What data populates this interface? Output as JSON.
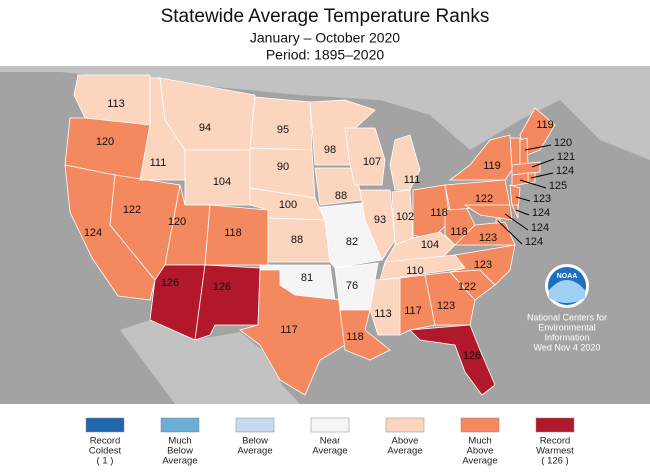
{
  "map": {
    "title": "Statewide Average Temperature Ranks",
    "subtitle": "January – October 2020",
    "period": "Period: 1895–2020",
    "logo": "NOAA",
    "credit": [
      "National Centers for",
      "Environmental",
      "Information",
      "Wed Nov  4 2020"
    ],
    "legend": [
      {
        "lines": [
          "Record",
          "Coldest",
          "( 1 )"
        ],
        "color": "#2166ac"
      },
      {
        "lines": [
          "Much",
          "Below",
          "Average"
        ],
        "color": "#6baed6"
      },
      {
        "lines": [
          "Below",
          "Average"
        ],
        "color": "#c6dbef"
      },
      {
        "lines": [
          "Near",
          "Average"
        ],
        "color": "#f5f5f5"
      },
      {
        "lines": [
          "Above",
          "Average"
        ],
        "color": "#fcd5bf"
      },
      {
        "lines": [
          "Much",
          "Above",
          "Average"
        ],
        "color": "#f4895f"
      },
      {
        "lines": [
          "Record",
          "Warmest",
          "( 126 )"
        ],
        "color": "#b2182b"
      }
    ],
    "states": [
      {
        "rank": 113,
        "color": "#fcd5bf"
      },
      {
        "rank": 120,
        "color": "#f4895f"
      },
      {
        "rank": 124,
        "color": "#f4895f"
      },
      {
        "rank": 122,
        "color": "#f4895f"
      },
      {
        "rank": 111,
        "color": "#fcd5bf"
      },
      {
        "rank": 94,
        "color": "#fcd5bf"
      },
      {
        "rank": 104,
        "color": "#fcd5bf"
      },
      {
        "rank": 120,
        "color": "#f4895f"
      },
      {
        "rank": 118,
        "color": "#f4895f"
      },
      {
        "rank": 126,
        "color": "#b2182b"
      },
      {
        "rank": 126,
        "color": "#b2182b"
      },
      {
        "rank": 95,
        "color": "#fcd5bf"
      },
      {
        "rank": 90,
        "color": "#fcd5bf"
      },
      {
        "rank": 100,
        "color": "#fcd5bf"
      },
      {
        "rank": 88,
        "color": "#fcd5bf"
      },
      {
        "rank": 81,
        "color": "#f5f5f5"
      },
      {
        "rank": 117,
        "color": "#f4895f"
      },
      {
        "rank": 98,
        "color": "#fcd5bf"
      },
      {
        "rank": 88,
        "color": "#fcd5bf"
      },
      {
        "rank": 82,
        "color": "#f5f5f5"
      },
      {
        "rank": 76,
        "color": "#f5f5f5"
      },
      {
        "rank": 118,
        "color": "#f4895f"
      },
      {
        "rank": 107,
        "color": "#fcd5bf"
      },
      {
        "rank": 93,
        "color": "#fcd5bf"
      },
      {
        "rank": 111,
        "color": "#fcd5bf"
      },
      {
        "rank": 102,
        "color": "#fcd5bf"
      },
      {
        "rank": 118,
        "color": "#f4895f"
      },
      {
        "rank": 104,
        "color": "#fcd5bf"
      },
      {
        "rank": 110,
        "color": "#fcd5bf"
      },
      {
        "rank": 113,
        "color": "#fcd5bf"
      },
      {
        "rank": 117,
        "color": "#f4895f"
      },
      {
        "rank": 123,
        "color": "#f4895f"
      },
      {
        "rank": 126,
        "color": "#b2182b"
      },
      {
        "rank": 122,
        "color": "#f4895f"
      },
      {
        "rank": 123,
        "color": "#f4895f"
      },
      {
        "rank": 118,
        "color": "#f4895f"
      },
      {
        "rank": 123,
        "color": "#f4895f"
      },
      {
        "rank": 122,
        "color": "#f4895f"
      },
      {
        "rank": 119,
        "color": "#f4895f"
      },
      {
        "rank": 119,
        "color": "#f4895f"
      },
      {
        "rank": 120,
        "color": "#f4895f"
      },
      {
        "rank": 121,
        "color": "#f4895f"
      },
      {
        "rank": 124,
        "color": "#f4895f"
      },
      {
        "rank": 125,
        "color": "#f4895f"
      },
      {
        "rank": 123,
        "color": "#f4895f"
      },
      {
        "rank": 124,
        "color": "#f4895f"
      },
      {
        "rank": 124,
        "color": "#f4895f"
      },
      {
        "rank": 124,
        "color": "#f4895f"
      }
    ]
  }
}
